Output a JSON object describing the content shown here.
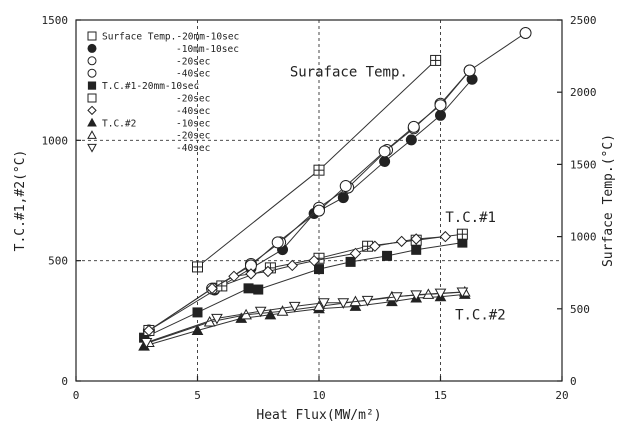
{
  "chart_data": {
    "type": "scatter",
    "xlabel": "Heat Flux(MW/m²)",
    "ylabel_left": "T.C.#1,#2(°C)",
    "ylabel_right": "Surface Temp.(°C)",
    "xlim": [
      0,
      20
    ],
    "ylim_left": [
      0,
      1500
    ],
    "ylim_right": [
      0,
      2500
    ],
    "x_ticks": [
      "0",
      "5",
      "10",
      "15",
      "20"
    ],
    "y_left_ticks": [
      "0",
      "500",
      "1000",
      "1500"
    ],
    "y_right_ticks": [
      "0",
      "500",
      "1000",
      "1500",
      "2000",
      "2500"
    ],
    "grid": "dashed at x=5,10,15 and y=500,1000",
    "annotations": [
      {
        "text": "Suraface Temp.",
        "x": 8.8,
        "y": 1265
      },
      {
        "text": "T.C.#1",
        "x": 15.2,
        "y": 660
      },
      {
        "text": "T.C.#2",
        "x": 15.6,
        "y": 255
      }
    ],
    "series": [
      {
        "name": "Surface Temp.-20mm-10sec",
        "axis": "right",
        "marker": "square-cross",
        "line": true,
        "x": [
          5.0,
          10.0,
          14.8
        ],
        "y": [
          790,
          1460,
          2220
        ]
      },
      {
        "name": "-10mm-10sec",
        "axis": "right",
        "marker": "filled-circle",
        "line": true,
        "x": [
          5.7,
          7.2,
          8.5,
          9.8,
          11.0,
          12.7,
          13.8,
          15.0,
          16.3
        ],
        "y": [
          630,
          780,
          910,
          1160,
          1270,
          1520,
          1670,
          1840,
          2090
        ]
      },
      {
        "name": "-20sec",
        "axis": "right",
        "marker": "open-circle",
        "line": true,
        "x": [
          5.7,
          7.2,
          8.4,
          10.0,
          11.2,
          12.8,
          13.9,
          15.0,
          16.2
        ],
        "y": [
          640,
          810,
          960,
          1200,
          1340,
          1600,
          1750,
          1920,
          2150
        ]
      },
      {
        "name": "-40sec",
        "axis": "right",
        "marker": "open-circle",
        "line": true,
        "x": [
          3.0,
          5.6,
          7.2,
          8.3,
          10.0,
          11.1,
          12.7,
          13.9,
          15.0,
          16.2,
          18.5
        ],
        "y": [
          350,
          640,
          800,
          960,
          1180,
          1350,
          1590,
          1760,
          1910,
          2150,
          2410
        ]
      },
      {
        "name": "T.C.#1-20mm-10sec",
        "axis": "left",
        "marker": "filled-square",
        "line": true,
        "x": [
          2.8,
          5.0,
          7.1,
          7.5,
          10.0,
          11.3,
          12.8,
          14.0,
          15.9
        ],
        "y": [
          180,
          285,
          385,
          380,
          465,
          495,
          520,
          545,
          575
        ]
      },
      {
        "name": "-20sec",
        "axis": "left",
        "marker": "square-cross",
        "line": true,
        "x": [
          3.0,
          6.0,
          8.0,
          10.0,
          12.0,
          14.0,
          15.9
        ],
        "y": [
          210,
          395,
          470,
          510,
          560,
          585,
          610
        ]
      },
      {
        "name": "-40sec",
        "axis": "left",
        "marker": "open-diamond",
        "line": true,
        "x": [
          3.0,
          5.6,
          6.5,
          7.2,
          7.9,
          8.9,
          9.8,
          11.5,
          12.3,
          13.4,
          14.0,
          15.2
        ],
        "y": [
          210,
          385,
          435,
          445,
          455,
          480,
          500,
          530,
          560,
          580,
          590,
          600
        ]
      },
      {
        "name": "T.C.#2",
        "axis": "left",
        "marker": "filled-triangle",
        "line": true,
        "x": [
          2.8,
          5.0,
          6.8,
          8.0,
          10.0,
          11.5,
          13.0,
          14.0,
          15.0,
          16.0
        ],
        "y": [
          145,
          210,
          260,
          275,
          300,
          310,
          330,
          345,
          350,
          360
        ]
      },
      {
        "name": "-20sec",
        "axis": "left",
        "marker": "open-triangle",
        "line": true,
        "x": [
          3.0,
          5.5,
          7.0,
          8.5,
          10.0,
          11.5,
          13.0,
          14.5,
          16.0
        ],
        "y": [
          160,
          245,
          275,
          290,
          310,
          330,
          350,
          360,
          370
        ]
      },
      {
        "name": "-40sec",
        "axis": "left",
        "marker": "open-triangle-down",
        "line": true,
        "x": [
          2.9,
          5.8,
          7.6,
          9.0,
          10.2,
          11.0,
          12.0,
          13.2,
          14.0,
          15.0,
          15.9
        ],
        "y": [
          160,
          260,
          290,
          310,
          325,
          325,
          335,
          350,
          358,
          365,
          370
        ]
      }
    ],
    "legend": {
      "placement": "top-left",
      "entries": [
        {
          "text": "Surface Temp.-20mm-10sec",
          "marker": "square-open"
        },
        {
          "text": "-10mm-10sec",
          "marker": "filled-circle"
        },
        {
          "text": "-20sec",
          "marker": "open-circle"
        },
        {
          "text": "-40sec",
          "marker": "open-circle"
        },
        {
          "text": "T.C.#1-20mm-10sec",
          "marker": "filled-square"
        },
        {
          "text": "-20sec",
          "marker": "square-open"
        },
        {
          "text": "-40sec",
          "marker": "open-diamond"
        },
        {
          "text": "T.C.#2",
          "marker": "filled-triangle",
          "suffix": "-10sec"
        },
        {
          "text": "-20sec",
          "marker": "open-triangle"
        },
        {
          "text": "-40sec",
          "marker": "open-triangle-down"
        }
      ]
    }
  }
}
